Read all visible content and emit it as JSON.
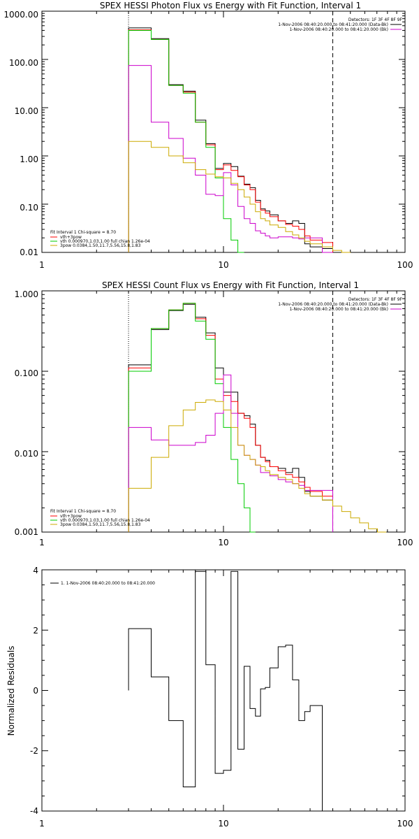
{
  "chart_data": [
    {
      "type": "line",
      "title": "SPEX HESSI Photon Flux vs Energy with Fit Function, Interval 1",
      "ylabel": "",
      "x_scale": "log",
      "y_scale": "log",
      "xlim": [
        1,
        100
      ],
      "ylim": [
        0.01,
        1000
      ],
      "x_ticks": [
        "1",
        "10",
        "100"
      ],
      "y_ticks": [
        "0.01",
        "0.10",
        "1.00",
        "10.00",
        "100.00",
        "1000.00"
      ],
      "detectors": "Detectors: 1F 3F 4F 8F 9F",
      "legend_top": [
        {
          "text": "1-Nov-2006 08:40:20.000 to 08:41:20.000 (Data-Bk)",
          "color": "#000000"
        },
        {
          "text": "1-Nov-2006 08:40:20.000 to 08:41:20.000 (Bk)",
          "color": "#cc00cc"
        }
      ],
      "fit_legend_title": "Fit Interval 1   Chi-square = 8.70",
      "fit_legend": [
        {
          "text": "vth+3pow",
          "color": "#ff0000"
        },
        {
          "text": "vth 0.000970,1.03,1.00  full chian 1.26e-04",
          "color": "#00cc00"
        },
        {
          "text": "3pow 0.0384,1.50,11.7,5.56,15.8,1.83",
          "color": "#ccaa00"
        }
      ],
      "vlines": [
        {
          "x": 3.0,
          "style": "dotted"
        },
        {
          "x": 40.0,
          "style": "dashed"
        }
      ],
      "bin_edges": [
        3,
        4,
        5,
        6,
        7,
        8,
        9,
        10,
        11,
        12,
        13,
        14,
        15,
        16,
        17,
        18,
        20,
        22,
        24,
        26,
        28,
        30,
        35,
        40
      ],
      "series": [
        {
          "color": "#000000",
          "values": [
            450,
            270,
            30,
            22,
            5.5,
            1.8,
            0.55,
            0.7,
            0.6,
            0.38,
            0.26,
            0.22,
            0.12,
            0.08,
            0.072,
            0.06,
            0.045,
            0.04,
            0.045,
            0.04,
            0.015,
            0.013,
            0.012
          ]
        },
        {
          "color": "#ff0000",
          "values": [
            410,
            260,
            29,
            21,
            5.0,
            1.7,
            0.52,
            0.65,
            0.5,
            0.37,
            0.25,
            0.2,
            0.11,
            0.075,
            0.065,
            0.055,
            0.045,
            0.038,
            0.035,
            0.03,
            0.022,
            0.018,
            0.016
          ]
        },
        {
          "color": "#00cc00",
          "values": [
            400,
            260,
            29,
            20,
            5.0,
            1.5,
            0.35,
            0.05,
            0.018,
            0.008
          ]
        },
        {
          "color": "#cc00cc",
          "values": [
            75,
            5,
            2.3,
            0.9,
            0.4,
            0.16,
            0.15,
            0.45,
            0.25,
            0.09,
            0.05,
            0.04,
            0.028,
            0.025,
            0.022,
            0.02,
            0.021,
            0.021,
            0.02,
            0.019,
            0.02,
            0.02,
            0.005
          ]
        },
        {
          "color": "#ccaa00",
          "values": [
            2,
            1.5,
            1.0,
            0.72,
            0.52,
            0.42,
            0.37,
            0.35,
            0.27,
            0.2,
            0.14,
            0.1,
            0.07,
            0.05,
            0.045,
            0.037,
            0.033,
            0.027,
            0.023,
            0.02,
            0.017,
            0.015,
            0.013,
            0.011,
            0.009
          ]
        }
      ]
    },
    {
      "type": "line",
      "title": "SPEX HESSI Count Flux vs Energy with Fit Function, Interval 1",
      "ylabel": "",
      "x_scale": "log",
      "y_scale": "log",
      "xlim": [
        1,
        100
      ],
      "ylim": [
        0.001,
        1
      ],
      "x_ticks": [
        "1",
        "10",
        "100"
      ],
      "y_ticks": [
        "0.001",
        "0.010",
        "0.100",
        "1.000"
      ],
      "detectors": "Detectors: 1F 3F 4F 8F 9F",
      "legend_top": [
        {
          "text": "1-Nov-2006 08:40:20.000 to 08:41:20.000 (Data-Bk)",
          "color": "#000000"
        },
        {
          "text": "1-Nov-2006 08:40:20.000 to 08:41:20.000 (Bk)",
          "color": "#cc00cc"
        }
      ],
      "fit_legend_title": "Fit Interval 1   Chi-square = 8.70",
      "fit_legend": [
        {
          "text": "vth+3pow",
          "color": "#ff0000"
        },
        {
          "text": "vth 0.000970,1.03,1.00  full chian 1.26e-04",
          "color": "#00cc00"
        },
        {
          "text": "3pow 0.0384,1.50,11.7,5.56,15.8,1.83",
          "color": "#ccaa00"
        }
      ],
      "vlines": [
        {
          "x": 3.0,
          "style": "dotted"
        },
        {
          "x": 40.0,
          "style": "dashed"
        }
      ],
      "bin_edges": [
        3,
        4,
        5,
        6,
        7,
        8,
        9,
        10,
        11,
        12,
        13,
        14,
        15,
        16,
        17,
        18,
        20,
        22,
        24,
        26,
        28,
        30,
        35,
        40
      ],
      "series": [
        {
          "color": "#000000",
          "values": [
            0.12,
            0.33,
            0.57,
            0.68,
            0.47,
            0.3,
            0.11,
            0.055,
            0.055,
            0.03,
            0.028,
            0.022,
            0.012,
            0.0085,
            0.0078,
            0.0065,
            0.0062,
            0.0055,
            0.0062,
            0.0048,
            0.0032,
            0.0028,
            0.0025
          ]
        },
        {
          "color": "#ff0000",
          "values": [
            0.11,
            0.34,
            0.58,
            0.7,
            0.45,
            0.28,
            0.08,
            0.05,
            0.042,
            0.03,
            0.026,
            0.02,
            0.012,
            0.0085,
            0.0075,
            0.0065,
            0.0058,
            0.0052,
            0.0048,
            0.0042,
            0.0036,
            0.0032,
            0.0028
          ]
        },
        {
          "color": "#00cc00",
          "values": [
            0.1,
            0.34,
            0.58,
            0.7,
            0.42,
            0.25,
            0.07,
            0.02,
            0.008,
            0.004,
            0.002,
            0.001
          ]
        },
        {
          "color": "#cc00cc",
          "values": [
            0.02,
            0.014,
            0.012,
            0.012,
            0.013,
            0.016,
            0.03,
            0.09,
            0.03,
            0.012,
            0.009,
            0.008,
            0.0068,
            0.0055,
            0.0055,
            0.005,
            0.0045,
            0.0042,
            0.004,
            0.0038,
            0.0033,
            0.0033,
            0.0033
          ]
        },
        {
          "color": "#ccaa00",
          "values": [
            0.0035,
            0.0085,
            0.021,
            0.033,
            0.041,
            0.044,
            0.042,
            0.033,
            0.02,
            0.012,
            0.009,
            0.008,
            0.0068,
            0.0065,
            0.0058,
            0.0052,
            0.0048,
            0.0045,
            0.004,
            0.0035,
            0.003,
            0.0028,
            0.0025,
            0.0021,
            0.0018,
            0.0015,
            0.0013,
            0.0011,
            0.001
          ]
        }
      ]
    },
    {
      "type": "line",
      "title": "",
      "ylabel": "Normalized Residuals",
      "x_scale": "log",
      "y_scale": "linear",
      "xlim": [
        1,
        100
      ],
      "ylim": [
        -4,
        4
      ],
      "x_ticks": [
        "1",
        "10",
        "100"
      ],
      "y_ticks": [
        "-4",
        "-2",
        "0",
        "2",
        "4"
      ],
      "legend": [
        {
          "text": "1.  1-Nov-2006 08:40:20.000 to 08:41:20.000",
          "color": "#000000"
        }
      ],
      "bin_edges": [
        3,
        4,
        5,
        6,
        7,
        8,
        9,
        10,
        11,
        12,
        13,
        14,
        15,
        16,
        17,
        18,
        20,
        22,
        24,
        26,
        28,
        30,
        35,
        40
      ],
      "series": [
        {
          "color": "#000000",
          "values": [
            2.05,
            0.45,
            -1.0,
            -3.2,
            3.95,
            0.85,
            -2.75,
            -2.65,
            3.95,
            -1.95,
            0.8,
            -0.6,
            -0.85,
            0.05,
            0.1,
            0.75,
            1.45,
            1.5,
            0.35,
            -1.0,
            -0.7,
            -0.5,
            -4.0
          ]
        }
      ]
    }
  ]
}
